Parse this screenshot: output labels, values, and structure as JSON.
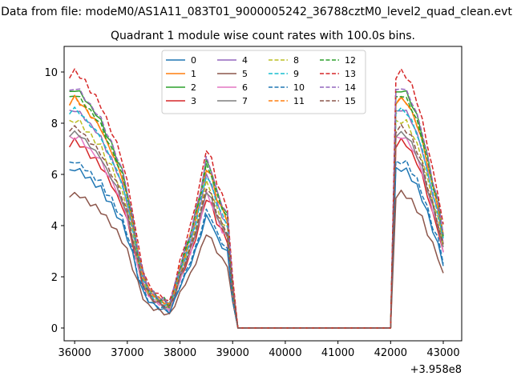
{
  "suptitle": "Data from file: modeM0/AS1A11_083T01_9000005242_36788cztM0_level2_quad_clean.evt",
  "chart_data": {
    "type": "line",
    "title": "Quadrant 1 module wise count rates with 100.0s bins.",
    "xlabel": "",
    "ylabel": "",
    "x_offset_label": "+3.958e8",
    "xlim": [
      35800,
      43350
    ],
    "ylim": [
      -0.5,
      11.0
    ],
    "xticks": [
      36000,
      37000,
      38000,
      39000,
      40000,
      41000,
      42000,
      43000
    ],
    "yticks": [
      0,
      2,
      4,
      6,
      8,
      10
    ],
    "legend_position": "upper-center",
    "series_colors": [
      "#1f77b4",
      "#ff7f0e",
      "#2ca02c",
      "#d62728",
      "#9467bd",
      "#8c564b",
      "#e377c2",
      "#7f7f7f",
      "#bcbd22",
      "#17becf",
      "#1f77b4",
      "#ff7f0e",
      "#2ca02c",
      "#d62728",
      "#9467bd",
      "#8c564b"
    ],
    "series_dashed": [
      false,
      false,
      false,
      false,
      false,
      false,
      false,
      false,
      true,
      true,
      true,
      true,
      true,
      true,
      true,
      true
    ],
    "series_names": [
      "0",
      "1",
      "2",
      "3",
      "4",
      "5",
      "6",
      "7",
      "8",
      "9",
      "10",
      "11",
      "12",
      "13",
      "14",
      "15"
    ],
    "series_scale": [
      0.89,
      1.28,
      1.33,
      1.04,
      1.22,
      0.75,
      1.07,
      1.09,
      1.16,
      1.22,
      0.93,
      1.28,
      1.3,
      1.43,
      1.34,
      1.12
    ],
    "x": [
      35900,
      36000,
      36100,
      36200,
      36300,
      36400,
      36500,
      36600,
      36700,
      36800,
      36900,
      37000,
      37100,
      37200,
      37300,
      37400,
      37500,
      37600,
      37700,
      37800,
      37900,
      38000,
      38100,
      38200,
      38300,
      38400,
      38500,
      38600,
      38700,
      38800,
      38900,
      39000,
      39100,
      39200,
      39300,
      39400,
      39500,
      39600,
      39700,
      39800,
      39900,
      40000,
      40100,
      40200,
      40300,
      40400,
      40500,
      40600,
      40700,
      40800,
      40900,
      41000,
      41100,
      41200,
      41300,
      41400,
      41500,
      41600,
      41700,
      41800,
      41900,
      42000,
      42100,
      42200,
      42300,
      42400,
      42500,
      42600,
      42700,
      42800,
      42900,
      43000
    ],
    "base_profile": [
      6.9,
      7.0,
      6.9,
      6.7,
      6.5,
      6.3,
      6.1,
      5.7,
      5.4,
      5.0,
      4.6,
      4.0,
      3.2,
      2.3,
      1.6,
      1.2,
      1.0,
      0.9,
      0.8,
      0.7,
      1.2,
      1.8,
      2.3,
      2.8,
      3.4,
      4.1,
      4.9,
      4.6,
      4.0,
      3.6,
      3.3,
      1.3,
      0.0,
      0.0,
      0.0,
      0.0,
      0.0,
      0.0,
      0.0,
      0.0,
      0.0,
      0.0,
      0.0,
      0.0,
      0.0,
      0.0,
      0.0,
      0.0,
      0.0,
      0.0,
      0.0,
      0.0,
      0.0,
      0.0,
      0.0,
      0.0,
      0.0,
      0.0,
      0.0,
      0.0,
      0.0,
      0.0,
      6.9,
      7.0,
      6.9,
      6.6,
      6.2,
      5.7,
      5.0,
      4.3,
      3.7,
      2.8
    ],
    "noise_pattern": [
      0.02,
      -0.03,
      0.05,
      -0.04,
      0.03,
      -0.06,
      0.04,
      -0.02,
      0.06,
      -0.05,
      0.03,
      -0.04,
      0.05,
      -0.03,
      0.02,
      -0.05,
      0.04,
      -0.03,
      0.06,
      -0.02,
      0.04,
      -0.05,
      0.03,
      -0.04,
      0.05,
      -0.03,
      0.02,
      -0.06
    ]
  }
}
